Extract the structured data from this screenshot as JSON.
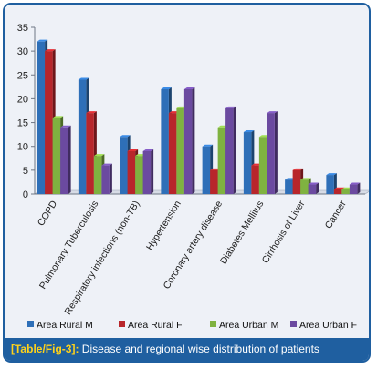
{
  "chart_data": {
    "type": "bar",
    "categories": [
      "COPD",
      "Pulmonary Tuberculosis",
      "Respiratory infections (non-TB)",
      "Hypertension",
      "Coronary artery disease",
      "Diabetes Mellitus",
      "Cirrhosis of Liver",
      "Cancer"
    ],
    "series": [
      {
        "name": "Area Rural M",
        "color": "#2e6fb8",
        "values": [
          32,
          24,
          12,
          22,
          10,
          13,
          3,
          4
        ]
      },
      {
        "name": "Area Rural F",
        "color": "#b8262b",
        "values": [
          30,
          17,
          9,
          17,
          5,
          6,
          5,
          1
        ]
      },
      {
        "name": "Area Urban M",
        "color": "#7fb240",
        "values": [
          16,
          8,
          8,
          18,
          14,
          12,
          3,
          1
        ]
      },
      {
        "name": "Area Urban F",
        "color": "#6b4aa0",
        "values": [
          14,
          6,
          9,
          22,
          18,
          17,
          2,
          2
        ]
      }
    ],
    "ylim": [
      0,
      35
    ],
    "yticks": [
      0,
      5,
      10,
      15,
      20,
      25,
      30,
      35
    ],
    "grid": false,
    "legend_position": "bottom"
  },
  "caption": {
    "tag": "[Table/Fig-3]:",
    "text": " Disease and regional wise distribution of patients"
  }
}
